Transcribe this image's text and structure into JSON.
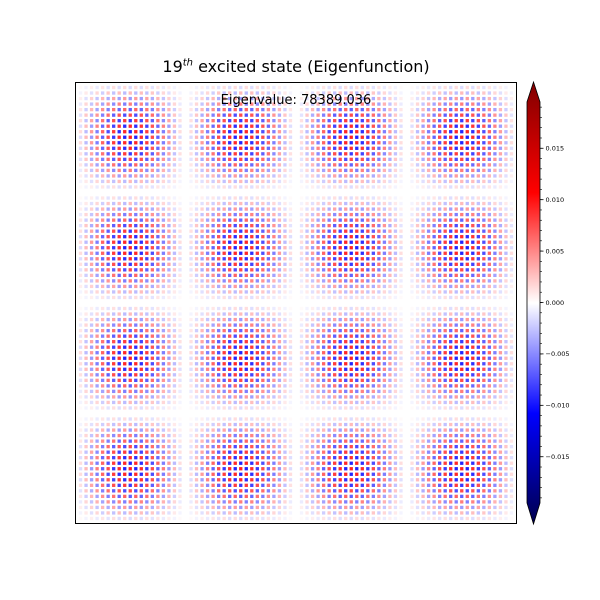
{
  "chart_data": {
    "type": "heatmap",
    "title": {
      "number": "19",
      "superscript": "th",
      "rest": " excited state (Eigenfunction)"
    },
    "annotation": "Eigenvalue: 78389.036",
    "grid": false,
    "axes_ticks_visible": false,
    "pattern": {
      "tile_grid": [
        4,
        4
      ],
      "dot_grid_per_tile": [
        19,
        19
      ],
      "checkerboard": true,
      "envelope": "sin(pi*x) * sin(pi*y) per tile"
    },
    "colormap": {
      "name": "seismic",
      "colors": [
        "#00004d",
        "#0000ff",
        "#ffffff",
        "#ff0000",
        "#800000"
      ]
    },
    "colorbar": {
      "vmin": -0.0195,
      "vmax": 0.0195,
      "extend": "both",
      "ticks": [
        -0.015,
        -0.01,
        -0.005,
        0.0,
        0.005,
        0.01,
        0.015
      ],
      "tick_labels": [
        "−0.015",
        "−0.010",
        "−0.005",
        "0.000",
        "0.005",
        "0.010",
        "0.015"
      ],
      "minor_tick_step": 0.001
    },
    "amplitude_max": 0.0085
  }
}
